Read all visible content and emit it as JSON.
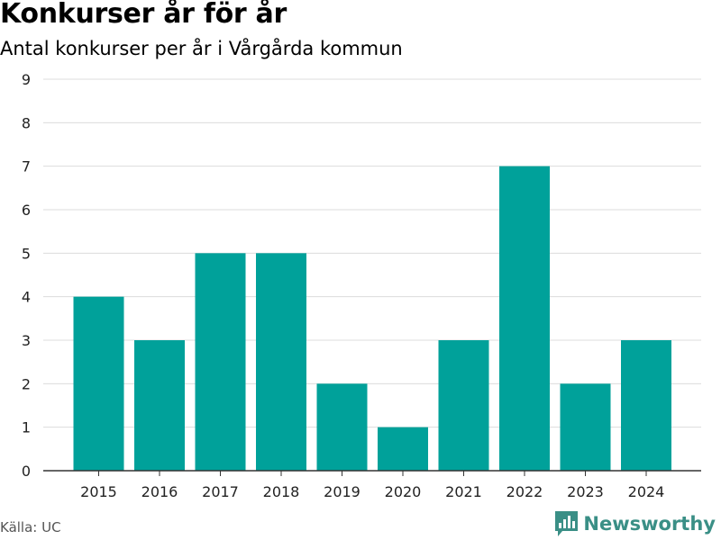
{
  "header": {
    "title": "Konkurser år för år",
    "subtitle": "Antal konkurser per år i Vårgårda kommun"
  },
  "footer": {
    "source": "Källa: UC",
    "brand": "Newsworthy",
    "brand_icon": "newsworthy-logo-icon"
  },
  "colors": {
    "bar": "#00a19a",
    "brand": "#3a8f86"
  },
  "chart_data": {
    "type": "bar",
    "title": "Konkurser år för år",
    "subtitle": "Antal konkurser per år i Vårgårda kommun",
    "xlabel": "",
    "ylabel": "",
    "categories": [
      "2015",
      "2016",
      "2017",
      "2018",
      "2019",
      "2020",
      "2021",
      "2022",
      "2023",
      "2024"
    ],
    "values": [
      4,
      3,
      5,
      5,
      2,
      1,
      3,
      7,
      2,
      3
    ],
    "ylim": [
      0,
      9
    ],
    "yticks": [
      0,
      1,
      2,
      3,
      4,
      5,
      6,
      7,
      8,
      9
    ],
    "grid": true,
    "legend": "none"
  }
}
